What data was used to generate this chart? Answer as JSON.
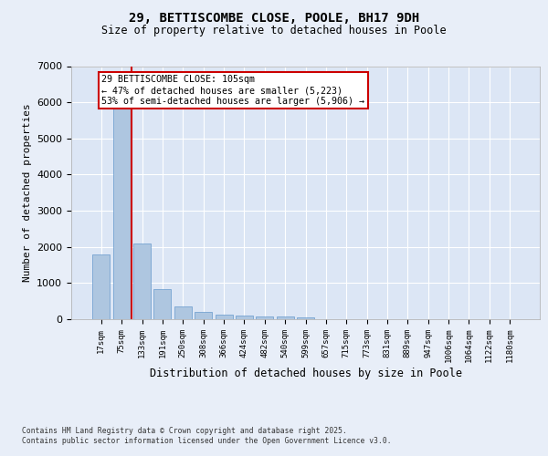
{
  "title_line1": "29, BETTISCOMBE CLOSE, POOLE, BH17 9DH",
  "title_line2": "Size of property relative to detached houses in Poole",
  "xlabel": "Distribution of detached houses by size in Poole",
  "ylabel": "Number of detached properties",
  "categories": [
    "17sqm",
    "75sqm",
    "133sqm",
    "191sqm",
    "250sqm",
    "308sqm",
    "366sqm",
    "424sqm",
    "482sqm",
    "540sqm",
    "599sqm",
    "657sqm",
    "715sqm",
    "773sqm",
    "831sqm",
    "889sqm",
    "947sqm",
    "1006sqm",
    "1064sqm",
    "1122sqm",
    "1180sqm"
  ],
  "values": [
    1780,
    5820,
    2090,
    820,
    360,
    200,
    120,
    95,
    80,
    65,
    55,
    0,
    0,
    0,
    0,
    0,
    0,
    0,
    0,
    0,
    0
  ],
  "bar_color": "#aec6e0",
  "bar_edge_color": "#6699cc",
  "highlight_line_color": "#cc0000",
  "annotation_text": "29 BETTISCOMBE CLOSE: 105sqm\n← 47% of detached houses are smaller (5,223)\n53% of semi-detached houses are larger (5,906) →",
  "annotation_box_color": "#ffffff",
  "annotation_box_edge": "#cc0000",
  "ylim": [
    0,
    7000
  ],
  "yticks": [
    0,
    1000,
    2000,
    3000,
    4000,
    5000,
    6000,
    7000
  ],
  "background_color": "#dce6f5",
  "grid_color": "#ffffff",
  "fig_background": "#e8eef8",
  "footer_line1": "Contains HM Land Registry data © Crown copyright and database right 2025.",
  "footer_line2": "Contains public sector information licensed under the Open Government Licence v3.0."
}
